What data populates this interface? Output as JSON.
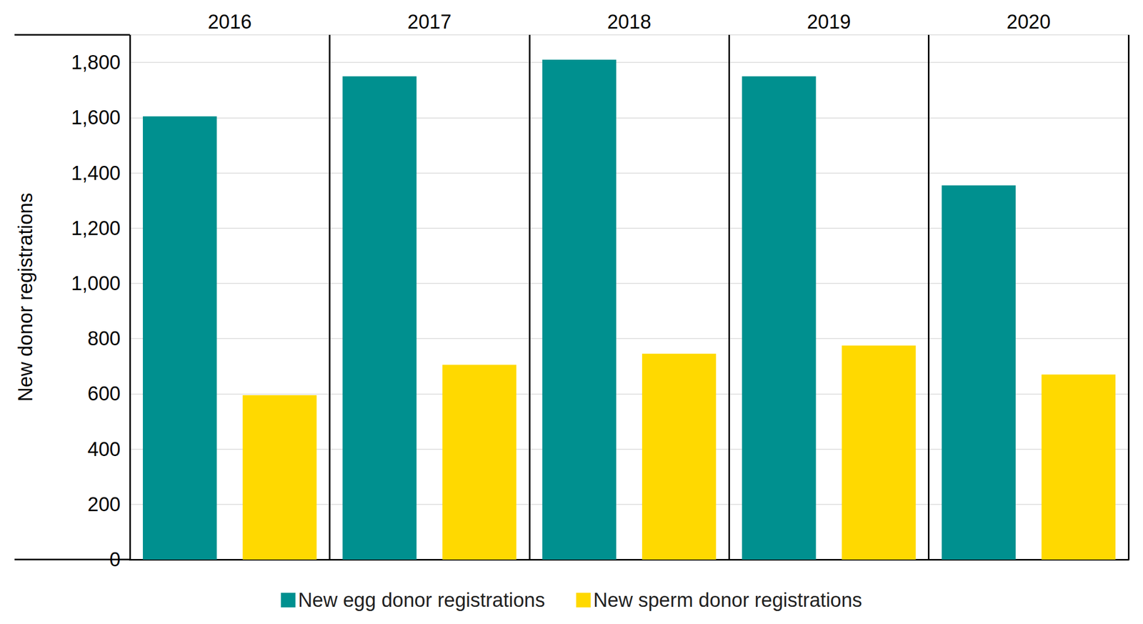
{
  "chart_data": {
    "type": "bar",
    "y_label": "New donor registrations",
    "categories": [
      "2016",
      "2017",
      "2018",
      "2019",
      "2020"
    ],
    "series": [
      {
        "name": "New egg donor registrations",
        "color": "#00908f",
        "values": [
          1605,
          1750,
          1810,
          1750,
          1355
        ]
      },
      {
        "name": "New sperm donor registrations",
        "color": "#ffd900",
        "values": [
          595,
          705,
          745,
          775,
          670
        ]
      }
    ],
    "ylim": [
      0,
      1900
    ],
    "yticks": [
      0,
      200,
      400,
      600,
      800,
      {
        "value": 1000,
        "label": "1,000"
      },
      {
        "value": 1200,
        "label": "1,200"
      },
      {
        "value": 1400,
        "label": "1,400"
      },
      {
        "value": 1600,
        "label": "1,600"
      },
      {
        "value": 1800,
        "label": "1,800"
      }
    ],
    "grid": true,
    "legend": "bottom"
  }
}
